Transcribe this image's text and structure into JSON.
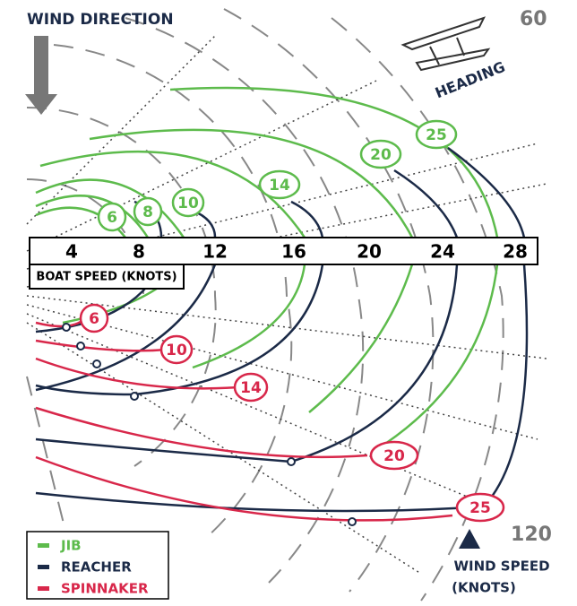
{
  "header": {
    "title": "WIND DIRECTION",
    "heading_label": "HEADING",
    "angle_top": "60",
    "angle_bottom": "120"
  },
  "speed_axis": {
    "title": "BOAT SPEED (KNOTS)",
    "ticks": [
      "4",
      "8",
      "12",
      "16",
      "20",
      "24",
      "28"
    ]
  },
  "jib_labels": [
    "6",
    "8",
    "10",
    "14",
    "20",
    "25"
  ],
  "spinnaker_labels": [
    "6",
    "10",
    "14",
    "20",
    "25"
  ],
  "wind_speed": {
    "line1": "WIND SPEED",
    "line2": "(KNOTS)"
  },
  "legend": [
    "JIB",
    "REACHER",
    "SPINNAKER"
  ]
}
